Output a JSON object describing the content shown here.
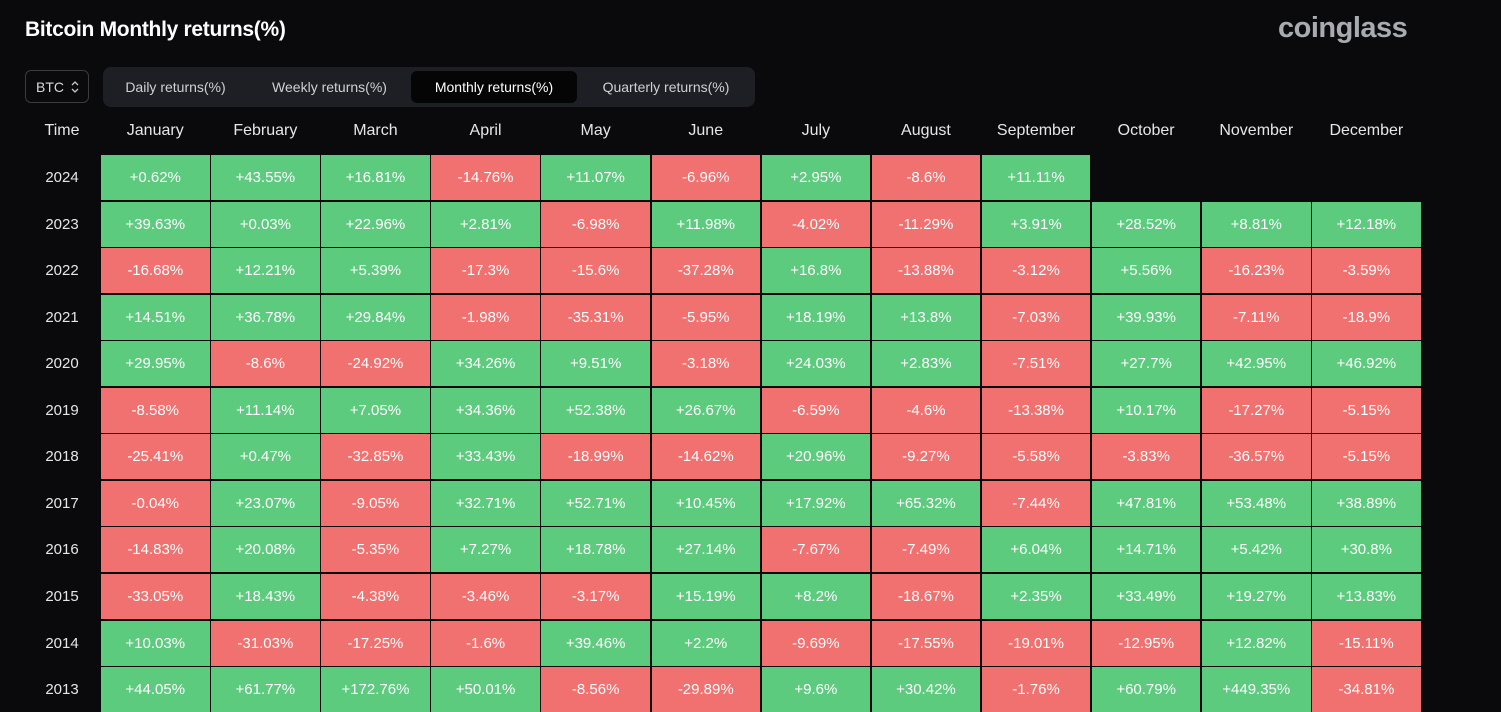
{
  "header": {
    "title": "Bitcoin Monthly returns(%)",
    "brand": "coinglass"
  },
  "controls": {
    "asset": "BTC",
    "tabs": [
      "Daily returns(%)",
      "Weekly returns(%)",
      "Monthly returns(%)",
      "Quarterly returns(%)"
    ],
    "active_tab": 2
  },
  "table": {
    "columns": [
      "Time",
      "January",
      "February",
      "March",
      "April",
      "May",
      "June",
      "July",
      "August",
      "September",
      "October",
      "November",
      "December"
    ],
    "colors": {
      "positive": "#5ccb7e",
      "negative": "#f0716f"
    },
    "rows": [
      [
        "2024",
        "+0.62%",
        "+43.55%",
        "+16.81%",
        "-14.76%",
        "+11.07%",
        "-6.96%",
        "+2.95%",
        "-8.6%",
        "+11.11%"
      ],
      [
        "2023",
        "+39.63%",
        "+0.03%",
        "+22.96%",
        "+2.81%",
        "-6.98%",
        "+11.98%",
        "-4.02%",
        "-11.29%",
        "+3.91%",
        "+28.52%",
        "+8.81%",
        "+12.18%"
      ],
      [
        "2022",
        "-16.68%",
        "+12.21%",
        "+5.39%",
        "-17.3%",
        "-15.6%",
        "-37.28%",
        "+16.8%",
        "-13.88%",
        "-3.12%",
        "+5.56%",
        "-16.23%",
        "-3.59%"
      ],
      [
        "2021",
        "+14.51%",
        "+36.78%",
        "+29.84%",
        "-1.98%",
        "-35.31%",
        "-5.95%",
        "+18.19%",
        "+13.8%",
        "-7.03%",
        "+39.93%",
        "-7.11%",
        "-18.9%"
      ],
      [
        "2020",
        "+29.95%",
        "-8.6%",
        "-24.92%",
        "+34.26%",
        "+9.51%",
        "-3.18%",
        "+24.03%",
        "+2.83%",
        "-7.51%",
        "+27.7%",
        "+42.95%",
        "+46.92%"
      ],
      [
        "2019",
        "-8.58%",
        "+11.14%",
        "+7.05%",
        "+34.36%",
        "+52.38%",
        "+26.67%",
        "-6.59%",
        "-4.6%",
        "-13.38%",
        "+10.17%",
        "-17.27%",
        "-5.15%"
      ],
      [
        "2018",
        "-25.41%",
        "+0.47%",
        "-32.85%",
        "+33.43%",
        "-18.99%",
        "-14.62%",
        "+20.96%",
        "-9.27%",
        "-5.58%",
        "-3.83%",
        "-36.57%",
        "-5.15%"
      ],
      [
        "2017",
        "-0.04%",
        "+23.07%",
        "-9.05%",
        "+32.71%",
        "+52.71%",
        "+10.45%",
        "+17.92%",
        "+65.32%",
        "-7.44%",
        "+47.81%",
        "+53.48%",
        "+38.89%"
      ],
      [
        "2016",
        "-14.83%",
        "+20.08%",
        "-5.35%",
        "+7.27%",
        "+18.78%",
        "+27.14%",
        "-7.67%",
        "-7.49%",
        "+6.04%",
        "+14.71%",
        "+5.42%",
        "+30.8%"
      ],
      [
        "2015",
        "-33.05%",
        "+18.43%",
        "-4.38%",
        "-3.46%",
        "-3.17%",
        "+15.19%",
        "+8.2%",
        "-18.67%",
        "+2.35%",
        "+33.49%",
        "+19.27%",
        "+13.83%"
      ],
      [
        "2014",
        "+10.03%",
        "-31.03%",
        "-17.25%",
        "-1.6%",
        "+39.46%",
        "+2.2%",
        "-9.69%",
        "-17.55%",
        "-19.01%",
        "-12.95%",
        "+12.82%",
        "-15.11%"
      ],
      [
        "2013",
        "+44.05%",
        "+61.77%",
        "+172.76%",
        "+50.01%",
        "-8.56%",
        "-29.89%",
        "+9.6%",
        "+30.42%",
        "-1.76%",
        "+60.79%",
        "+449.35%",
        "-34.81%"
      ]
    ]
  }
}
